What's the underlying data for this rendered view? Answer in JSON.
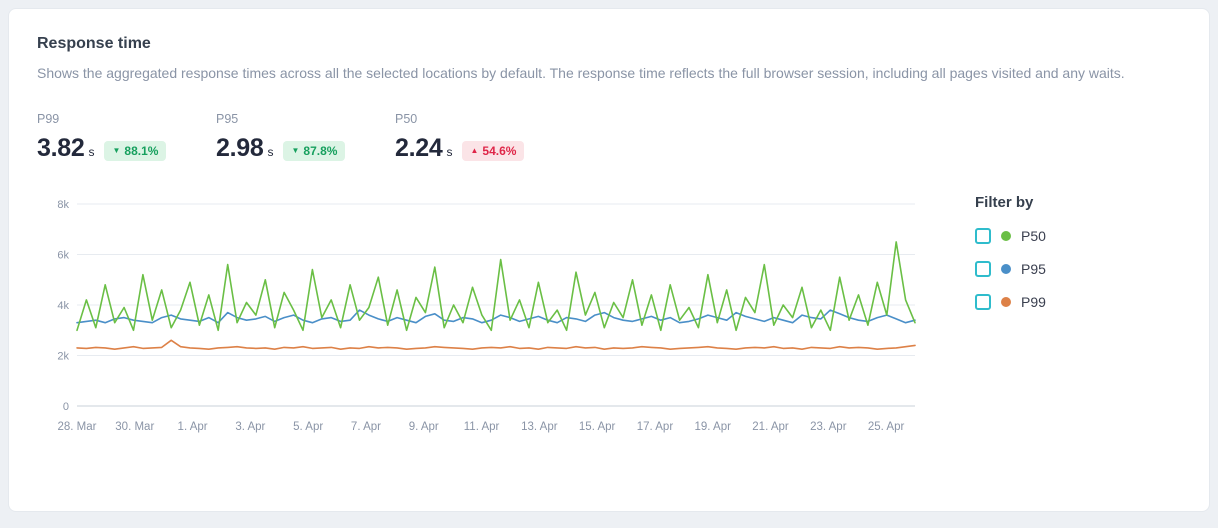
{
  "card": {
    "title": "Response time",
    "description": "Shows the aggregated response times across all the selected locations by default. The response time reflects the full browser session, including all pages visited and any waits."
  },
  "stats": [
    {
      "label": "P99",
      "value": "3.82",
      "unit": "s",
      "delta": "88.1%",
      "arrow": "▼",
      "tone": "positive"
    },
    {
      "label": "P95",
      "value": "2.98",
      "unit": "s",
      "delta": "87.8%",
      "arrow": "▼",
      "tone": "positive"
    },
    {
      "label": "P50",
      "value": "2.24",
      "unit": "s",
      "delta": "54.6%",
      "arrow": "▲",
      "tone": "negative"
    }
  ],
  "filter": {
    "title": "Filter by",
    "items": [
      {
        "label": "P50",
        "color": "#6abf45",
        "checked": false
      },
      {
        "label": "P95",
        "color": "#4a8fc8",
        "checked": false
      },
      {
        "label": "P99",
        "color": "#dd8147",
        "checked": false
      }
    ]
  },
  "colors": {
    "positive_badge_bg": "#dcf4e5",
    "positive_badge_text": "#17a05e",
    "negative_badge_bg": "#fbe4e7",
    "negative_badge_text": "#df2648",
    "checkbox_border": "#2fbccc",
    "grid_line": "#e7ebf0",
    "axis_text": "#8a94a6"
  },
  "chart_data": {
    "type": "line",
    "title": "Response time",
    "grid": true,
    "legend_position": "right",
    "ylim": [
      0,
      8000
    ],
    "yticks": [
      {
        "value": 0,
        "label": "0"
      },
      {
        "value": 2000,
        "label": "2k"
      },
      {
        "value": 4000,
        "label": "4k"
      },
      {
        "value": 6000,
        "label": "6k"
      },
      {
        "value": 8000,
        "label": "8k"
      }
    ],
    "x_tick_labels": [
      "28. Mar",
      "30. Mar",
      "1. Apr",
      "3. Apr",
      "5. Apr",
      "7. Apr",
      "9. Apr",
      "11. Apr",
      "13. Apr",
      "15. Apr",
      "17. Apr",
      "19. Apr",
      "21. Apr",
      "23. Apr",
      "25. Apr"
    ],
    "x_span_days": 29,
    "x_tick_step_days": 2,
    "series": [
      {
        "name": "P50",
        "color": "#6abf45",
        "values": [
          3000,
          4200,
          3100,
          4800,
          3300,
          3900,
          3000,
          5200,
          3400,
          4600,
          3100,
          3800,
          4900,
          3200,
          4400,
          3000,
          5600,
          3300,
          4100,
          3600,
          5000,
          3100,
          4500,
          3800,
          3000,
          5400,
          3500,
          4200,
          3100,
          4800,
          3400,
          3900,
          5100,
          3200,
          4600,
          3000,
          4300,
          3700,
          5500,
          3100,
          4000,
          3300,
          4700,
          3600,
          3000,
          5800,
          3400,
          4200,
          3100,
          4900,
          3300,
          3800,
          3000,
          5300,
          3600,
          4500,
          3100,
          4100,
          3500,
          5000,
          3200,
          4400,
          3000,
          4800,
          3400,
          3900,
          3100,
          5200,
          3300,
          4600,
          3000,
          4300,
          3700,
          5600,
          3200,
          4000,
          3500,
          4700,
          3100,
          3800,
          3000,
          5100,
          3400,
          4400,
          3200,
          4900,
          3600,
          6500,
          4200,
          3300
        ]
      },
      {
        "name": "P95",
        "color": "#4a8fc8",
        "values": [
          3300,
          3350,
          3400,
          3300,
          3450,
          3500,
          3400,
          3350,
          3300,
          3500,
          3600,
          3450,
          3400,
          3350,
          3500,
          3300,
          3700,
          3500,
          3400,
          3450,
          3550,
          3350,
          3500,
          3600,
          3400,
          3300,
          3450,
          3500,
          3350,
          3400,
          3800,
          3600,
          3450,
          3350,
          3500,
          3400,
          3300,
          3550,
          3650,
          3400,
          3350,
          3500,
          3450,
          3300,
          3400,
          3600,
          3500,
          3350,
          3450,
          3550,
          3400,
          3300,
          3500,
          3450,
          3350,
          3600,
          3700,
          3500,
          3400,
          3350,
          3450,
          3550,
          3400,
          3500,
          3300,
          3350,
          3450,
          3600,
          3500,
          3400,
          3700,
          3550,
          3450,
          3350,
          3500,
          3400,
          3300,
          3600,
          3500,
          3450,
          3800,
          3650,
          3500,
          3400,
          3350,
          3500,
          3600,
          3450,
          3300,
          3400
        ]
      },
      {
        "name": "P99",
        "color": "#dd8147",
        "values": [
          2300,
          2280,
          2320,
          2300,
          2250,
          2300,
          2350,
          2280,
          2300,
          2320,
          2600,
          2350,
          2300,
          2280,
          2250,
          2300,
          2320,
          2350,
          2300,
          2280,
          2300,
          2250,
          2320,
          2300,
          2350,
          2280,
          2300,
          2320,
          2250,
          2300,
          2280,
          2350,
          2300,
          2320,
          2300,
          2250,
          2280,
          2300,
          2350,
          2320,
          2300,
          2280,
          2250,
          2300,
          2320,
          2300,
          2350,
          2280,
          2300,
          2250,
          2320,
          2300,
          2280,
          2350,
          2300,
          2320,
          2250,
          2300,
          2280,
          2300,
          2350,
          2320,
          2300,
          2250,
          2280,
          2300,
          2320,
          2350,
          2300,
          2280,
          2250,
          2300,
          2320,
          2300,
          2350,
          2280,
          2300,
          2250,
          2320,
          2300,
          2280,
          2350,
          2300,
          2320,
          2300,
          2250,
          2280,
          2300,
          2350,
          2400
        ]
      }
    ]
  }
}
